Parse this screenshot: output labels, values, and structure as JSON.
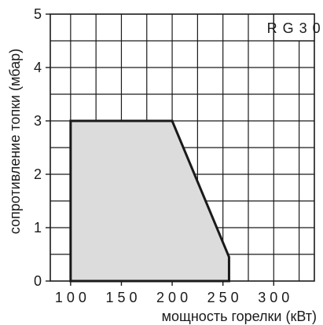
{
  "chart_data": {
    "type": "area",
    "title": "",
    "legend": {
      "label": "R G 3 0",
      "placement": "top-right"
    },
    "xlabel": "мощность горелки (кВт)",
    "ylabel": "сопротивление топки (мбар)",
    "xlim": [
      80,
      340
    ],
    "ylim": [
      0,
      5
    ],
    "grid": true,
    "x_ticks": [
      100,
      150,
      200,
      250,
      300
    ],
    "x_tick_labels": [
      "1 0 0",
      "1 5 0",
      "2 0 0",
      "2 5 0",
      "3 0 0"
    ],
    "y_ticks": [
      0,
      1,
      2,
      3,
      4,
      5
    ],
    "y_tick_labels": [
      "0",
      "1",
      "2",
      "3",
      "4",
      "5"
    ],
    "series": [
      {
        "points": [
          {
            "x": 100,
            "y": 0
          },
          {
            "x": 100,
            "y": 3
          },
          {
            "x": 200,
            "y": 3
          },
          {
            "x": 256,
            "y": 0.45
          },
          {
            "x": 256,
            "y": 0
          }
        ]
      }
    ],
    "colors": {
      "fill": "#dcdcdc",
      "outline": "#1a1a1a",
      "grid": "#1a1a1a"
    }
  }
}
